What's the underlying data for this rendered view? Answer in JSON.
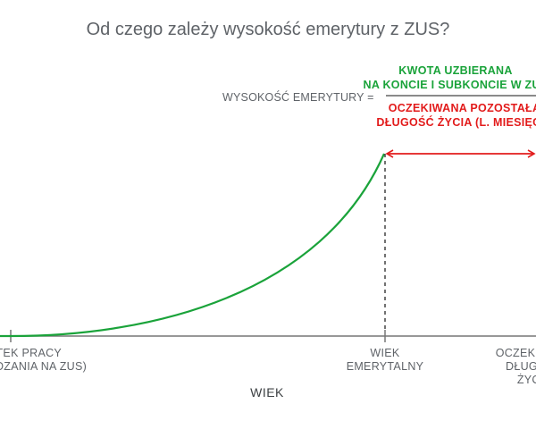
{
  "title": "Od czego zależy wysokość emerytury z ZUS?",
  "formula": {
    "label": "WYSOKOŚĆ EMERYTURY =",
    "numerator_line1": "KWOTA UZBIERANA",
    "numerator_line2": "NA KONCIE I SUBKONCIE W ZUS",
    "denominator_line1": "OCZEKIWANA POZOSTAŁA",
    "denominator_line2": "DŁUGOŚĆ ŻYCIA (L. MIESIĘCY)"
  },
  "axis": {
    "title": "WIEK",
    "start_line1": "POCZĄTEK PRACY",
    "start_line2": "(ODPROWADZANIA NA ZUS)",
    "retirement_line1": "WIEK",
    "retirement_line2": "EMERYTALNY",
    "end_line1": "OCZEKIWANA",
    "end_line2": "DŁUGOŚĆ",
    "end_line3": "ŻYCIA"
  },
  "colors": {
    "accumulation": "#1aa33a",
    "life_expectancy": "#e21b1b",
    "axis": "#777777",
    "text": "#5f6368"
  }
}
